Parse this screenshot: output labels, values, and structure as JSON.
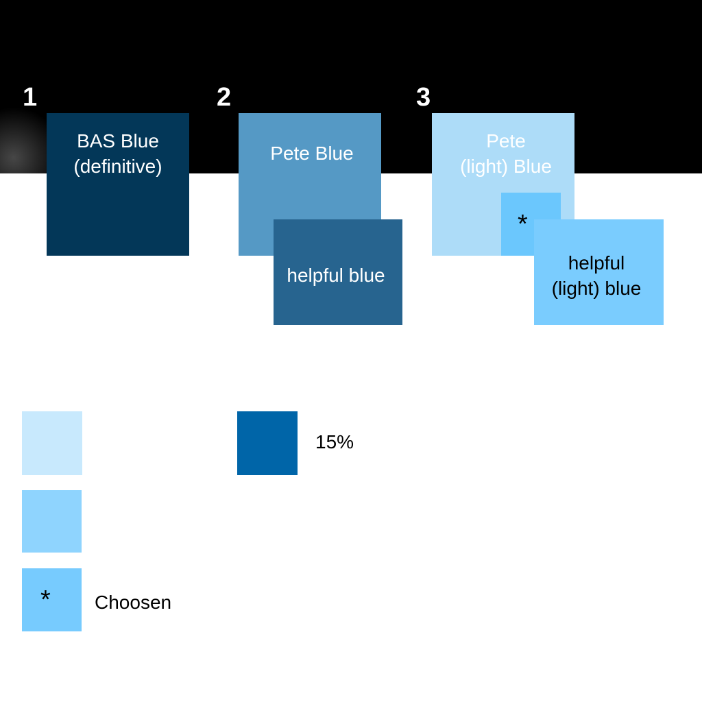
{
  "colors": {
    "background_top": "#000000",
    "background_bottom": "#ffffff",
    "bas_blue": "#033758",
    "pete_blue": "#5599c5",
    "helpful_blue": "#27648f",
    "pete_light_blue": "#addcf8",
    "helpful_light_blue": "#7accfe",
    "chosen_marker": "#6bc7fd",
    "swatch_1": "#c8e9fd",
    "swatch_2": "#8fd4fe",
    "swatch_3": "#77cbfe",
    "swatch_15": "#0065a8"
  },
  "groups": [
    {
      "number": "1",
      "main_label": "BAS Blue\n(definitive)"
    },
    {
      "number": "2",
      "main_label": "Pete Blue",
      "overlay_label": "helpful blue"
    },
    {
      "number": "3",
      "main_label": "Pete\n(light) Blue",
      "marker": "*",
      "overlay_label": "helpful\n(light) blue"
    }
  ],
  "legend": {
    "chosen_marker": "*",
    "chosen_label": "Choosen",
    "percent_label": "15%"
  }
}
